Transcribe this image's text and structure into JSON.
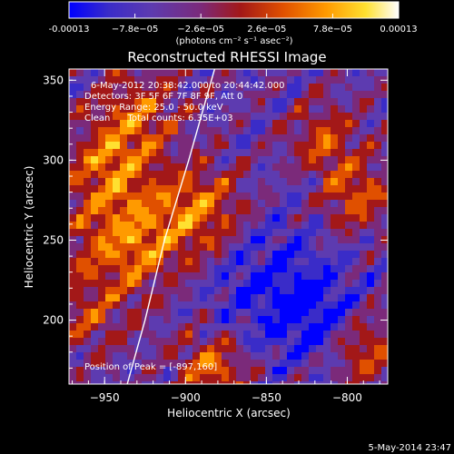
{
  "colorbar": {
    "tick_labels": [
      "-0.00013",
      "−7.8e−05",
      "−2.6e−05",
      "2.6e−05",
      "7.8e−05",
      "0.00013"
    ],
    "min": -0.00013,
    "max": 0.00013,
    "units_line": "(photons cm⁻² s⁻¹ asec⁻²)",
    "colors": [
      "#0000ff",
      "#3a2cc8",
      "#5d3bb0",
      "#7b2a7a",
      "#a31818",
      "#e05000",
      "#ff9a00",
      "#ffe030",
      "#ffffff"
    ]
  },
  "title": "Reconstructed RHESSI Image",
  "annotations": {
    "time_range": "6-May-2012 20:38:42.000 to 20:44:42.000",
    "detectors": "Detectors: 3F 5F 6F 7F 8F 9F, Att 0",
    "energy": "Energy Range: 25.0 - 50.0 keV",
    "clean": "Clean      Total counts: 6.35E+03",
    "peak": "Position of Peak = [-897,160]"
  },
  "footer_date": "5-May-2014 23:47",
  "chart_data": {
    "type": "heatmap",
    "title": "Reconstructed RHESSI Image",
    "xlabel": "Heliocentric X (arcsec)",
    "ylabel": "Heliocentric Y (arcsec)",
    "xlim": [
      -972,
      -775
    ],
    "ylim": [
      160,
      357
    ],
    "x_ticks": [
      -950,
      -900,
      -850,
      -800
    ],
    "x_tick_labels": [
      "−950",
      "−900",
      "−850",
      "−800"
    ],
    "y_ticks": [
      200,
      250,
      300,
      350
    ],
    "y_tick_labels": [
      "200",
      "250",
      "300",
      "350"
    ],
    "colorbar_range": [
      -0.00013,
      0.00013
    ],
    "peak_position": [
      -897,
      160
    ],
    "limb_curve": [
      [
        -936,
        160
      ],
      [
        -925,
        200
      ],
      [
        -913,
        250
      ],
      [
        -898,
        300
      ],
      [
        -882,
        357
      ]
    ]
  }
}
